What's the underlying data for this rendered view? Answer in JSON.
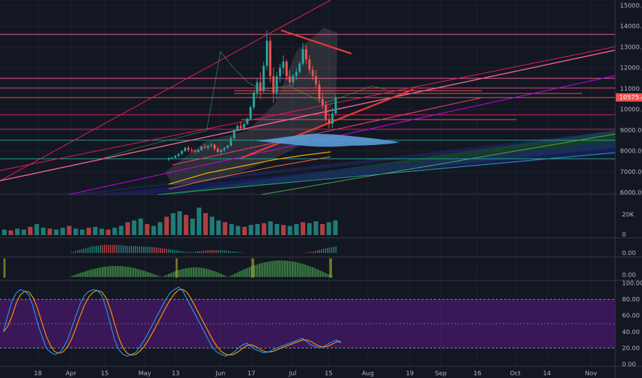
{
  "chart_data": {
    "type": "candlestick",
    "x_axis": {
      "type": "time",
      "tick_labels": [
        "18",
        "Apr",
        "15",
        "May",
        "13",
        "Jun",
        "17",
        "Jul",
        "15",
        "Aug",
        "19",
        "Sep",
        "16",
        "Oct",
        "14",
        "Nov"
      ]
    },
    "price_pane": {
      "y_range": [
        6000,
        15000
      ],
      "tick_labels": [
        "15000.00",
        "14000.00",
        "13000.00",
        "12000.00",
        "11000.00",
        "10000.00",
        "9000.00",
        "8000.00",
        "7000.00",
        "6000.00"
      ],
      "last_price": "10575.41",
      "last_price_color": "#ef5350",
      "candles": [
        [
          7580,
          7700,
          7500,
          7650
        ],
        [
          7650,
          7720,
          7600,
          7680
        ],
        [
          7680,
          7800,
          7640,
          7760
        ],
        [
          7760,
          7900,
          7700,
          7850
        ],
        [
          7850,
          8050,
          7800,
          8000
        ],
        [
          8000,
          8200,
          7950,
          8150
        ],
        [
          8150,
          8250,
          7950,
          8050
        ],
        [
          8050,
          8150,
          7900,
          8000
        ],
        [
          8000,
          8100,
          7850,
          7950
        ],
        [
          7950,
          8100,
          7900,
          8050
        ],
        [
          8050,
          8250,
          8000,
          8200
        ],
        [
          8200,
          8350,
          8100,
          8150
        ],
        [
          8150,
          8300,
          8050,
          8250
        ],
        [
          8250,
          8400,
          8150,
          8300
        ],
        [
          8300,
          8350,
          8000,
          8100
        ],
        [
          8100,
          8200,
          7900,
          7950
        ],
        [
          7950,
          8100,
          7800,
          8050
        ],
        [
          8050,
          8200,
          7950,
          8150
        ],
        [
          8150,
          8300,
          8100,
          8250
        ],
        [
          8250,
          8700,
          8200,
          8600
        ],
        [
          8600,
          9050,
          8550,
          9000
        ],
        [
          9000,
          9300,
          8950,
          9200
        ],
        [
          9200,
          9400,
          9000,
          9100
        ],
        [
          9100,
          9350,
          9000,
          9300
        ],
        [
          9300,
          9600,
          9250,
          9550
        ],
        [
          9550,
          10200,
          9500,
          10100
        ],
        [
          10100,
          10900,
          10000,
          10800
        ],
        [
          10800,
          11500,
          10600,
          11300
        ],
        [
          11300,
          11800,
          10500,
          10900
        ],
        [
          10900,
          12300,
          10800,
          12100
        ],
        [
          12100,
          13800,
          11900,
          13300
        ],
        [
          13300,
          13500,
          11300,
          11600
        ],
        [
          11600,
          12000,
          10300,
          10800
        ],
        [
          10800,
          11800,
          10500,
          11600
        ],
        [
          11600,
          12200,
          11300,
          12000
        ],
        [
          12000,
          12600,
          11700,
          12300
        ],
        [
          12300,
          12400,
          11400,
          11600
        ],
        [
          11600,
          11900,
          11100,
          11300
        ],
        [
          11300,
          11700,
          11100,
          11600
        ],
        [
          11600,
          12000,
          11400,
          11800
        ],
        [
          11800,
          12300,
          11700,
          12200
        ],
        [
          12200,
          13200,
          12100,
          12900
        ],
        [
          12900,
          13100,
          12200,
          12400
        ],
        [
          12400,
          12600,
          11700,
          11900
        ],
        [
          11900,
          12100,
          11400,
          11600
        ],
        [
          11600,
          11900,
          11000,
          11200
        ],
        [
          11200,
          11400,
          10300,
          10500
        ],
        [
          10500,
          10800,
          10000,
          10200
        ],
        [
          10200,
          10400,
          9300,
          9500
        ],
        [
          9500,
          9800,
          9100,
          9300
        ],
        [
          9300,
          10100,
          9100,
          9800
        ],
        [
          9800,
          10700,
          9700,
          10575.41
        ]
      ]
    },
    "volume_pane": {
      "tick_labels": [
        "20K",
        "0"
      ],
      "values": [
        6,
        5,
        7,
        6,
        9,
        12,
        8,
        7,
        6,
        8,
        10,
        7,
        6,
        8,
        9,
        7,
        6,
        8,
        10,
        14,
        16,
        18,
        12,
        10,
        14,
        20,
        24,
        26,
        22,
        18,
        30,
        24,
        20,
        16,
        14,
        12,
        10,
        9,
        11,
        12,
        13,
        15,
        12,
        11,
        10,
        12,
        14,
        13,
        15,
        12,
        14,
        16
      ]
    },
    "macd_pane": {
      "tick_labels": [
        "0.00"
      ]
    },
    "histogram_pane": {
      "tick_labels": [
        "0.00"
      ]
    },
    "stochastic_pane": {
      "y_range": [
        0,
        100
      ],
      "tick_labels": [
        "100.00",
        "80.00",
        "60.00",
        "40.00",
        "20.00",
        "0.00"
      ],
      "k_color": "#2196f3",
      "d_color": "#ff9800",
      "band_color": "#6a1b9a",
      "k": [
        40,
        60,
        78,
        88,
        92,
        90,
        85,
        70,
        50,
        35,
        20,
        15,
        12,
        14,
        20,
        30,
        45,
        60,
        75,
        85,
        90,
        92,
        91,
        85,
        70,
        50,
        30,
        18,
        12,
        10,
        12,
        15,
        22,
        30,
        40,
        50,
        60,
        70,
        80,
        88,
        92,
        95,
        90,
        80,
        70,
        60,
        50,
        40,
        30,
        20,
        15,
        12,
        10,
        12,
        15,
        20,
        24,
        26,
        22,
        18,
        16,
        14,
        15,
        18,
        20,
        22,
        24,
        26,
        28,
        30,
        32,
        28,
        24,
        22,
        20,
        22,
        25,
        28,
        30,
        26
      ]
    },
    "legend": ""
  }
}
